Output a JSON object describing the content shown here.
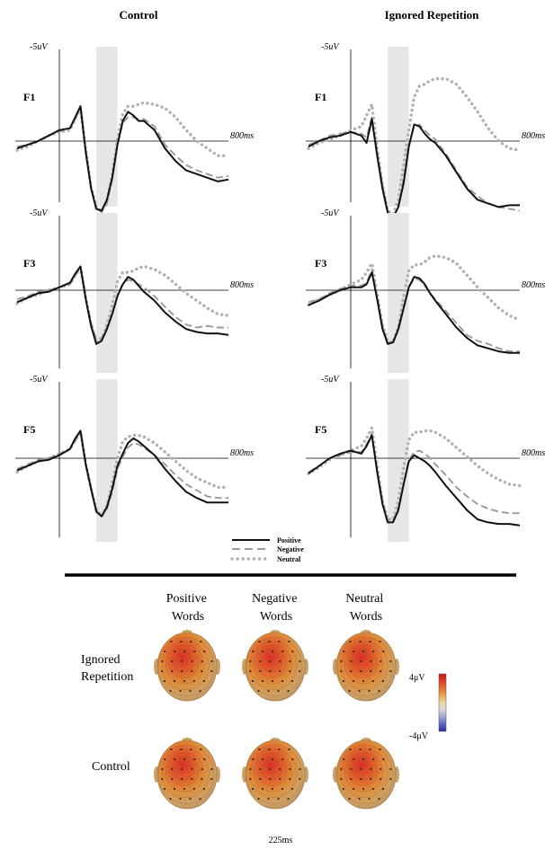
{
  "panels_header": {
    "control": "Control",
    "ignored": "Ignored Repetition"
  },
  "axis_text": {
    "amplitude": "-5uV",
    "time_end": "800ms"
  },
  "legend": [
    {
      "label": "Positive",
      "style": "solid",
      "color": "#111111"
    },
    {
      "label": "Negative",
      "style": "dashed",
      "color": "#9a9a9a"
    },
    {
      "label": "Neutral",
      "style": "dotted",
      "color": "#b0b0b0"
    }
  ],
  "highlight": {
    "color": "#e6e6e6"
  },
  "chart_data": [
    {
      "type": "line",
      "condition": "Control",
      "electrode": "F1",
      "x": [
        -200,
        -150,
        -100,
        -50,
        0,
        50,
        75,
        100,
        125,
        150,
        175,
        200,
        225,
        250,
        275,
        300,
        325,
        350,
        375,
        400,
        450,
        500,
        550,
        600,
        650,
        700,
        750,
        800
      ],
      "xlim": [
        -200,
        800
      ],
      "ylim": [
        -5,
        5
      ],
      "series": [
        {
          "name": "Positive",
          "values": [
            0.4,
            0.2,
            0.0,
            -0.3,
            -0.6,
            -0.7,
            -1.3,
            -1.9,
            0.6,
            2.6,
            3.7,
            3.8,
            3.2,
            2.0,
            0.2,
            -1.1,
            -1.6,
            -1.4,
            -1.1,
            -1.1,
            -0.6,
            0.4,
            1.1,
            1.6,
            1.8,
            2.0,
            2.2,
            2.1
          ]
        },
        {
          "name": "Negative",
          "values": [
            0.3,
            0.2,
            0.0,
            -0.3,
            -0.5,
            -0.7,
            -1.2,
            -1.8,
            0.7,
            2.5,
            3.6,
            3.9,
            3.4,
            2.1,
            0.2,
            -1.0,
            -1.3,
            -1.3,
            -1.2,
            -1.2,
            -0.8,
            0.2,
            0.8,
            1.3,
            1.6,
            1.8,
            2.0,
            1.9
          ]
        },
        {
          "name": "Neutral",
          "values": [
            0.5,
            0.3,
            0.0,
            -0.3,
            -0.5,
            -0.6,
            -1.2,
            -1.8,
            0.5,
            2.5,
            3.6,
            3.8,
            3.3,
            1.8,
            -0.1,
            -1.5,
            -1.9,
            -1.9,
            -2.0,
            -2.1,
            -2.0,
            -1.8,
            -1.3,
            -0.6,
            0.0,
            0.4,
            0.8,
            0.8
          ]
        }
      ]
    },
    {
      "type": "line",
      "condition": "Control",
      "electrode": "F3",
      "x": [
        -200,
        -150,
        -100,
        -50,
        0,
        50,
        75,
        100,
        125,
        150,
        175,
        200,
        225,
        250,
        275,
        300,
        325,
        350,
        375,
        400,
        450,
        500,
        550,
        600,
        650,
        700,
        750,
        800
      ],
      "xlim": [
        -200,
        800
      ],
      "ylim": [
        -5,
        5
      ],
      "series": [
        {
          "name": "Positive",
          "values": [
            0.8,
            0.5,
            0.2,
            0.1,
            -0.2,
            -0.5,
            -1.1,
            -1.6,
            0.6,
            2.4,
            3.6,
            3.4,
            2.6,
            1.6,
            0.4,
            -0.4,
            -0.9,
            -0.7,
            -0.3,
            0.1,
            0.7,
            1.5,
            2.1,
            2.6,
            2.8,
            2.9,
            2.9,
            3.0
          ]
        },
        {
          "name": "Negative",
          "values": [
            0.6,
            0.4,
            0.1,
            0.0,
            -0.2,
            -0.4,
            -1.0,
            -1.5,
            0.6,
            2.2,
            3.3,
            3.2,
            2.5,
            1.5,
            0.3,
            -0.4,
            -0.7,
            -0.6,
            -0.4,
            -0.2,
            0.4,
            1.1,
            1.8,
            2.3,
            2.5,
            2.4,
            2.5,
            2.5
          ]
        },
        {
          "name": "Neutral",
          "values": [
            0.9,
            0.5,
            0.3,
            0.0,
            -0.2,
            -0.4,
            -1.0,
            -1.5,
            0.5,
            2.3,
            3.4,
            3.3,
            2.3,
            1.0,
            -0.6,
            -1.2,
            -1.2,
            -1.3,
            -1.5,
            -1.6,
            -1.4,
            -1.0,
            -0.4,
            0.2,
            0.7,
            1.2,
            1.6,
            1.7
          ]
        }
      ]
    },
    {
      "type": "line",
      "condition": "Control",
      "electrode": "F5",
      "x": [
        -200,
        -150,
        -100,
        -50,
        0,
        50,
        75,
        100,
        125,
        150,
        175,
        200,
        225,
        250,
        275,
        300,
        325,
        350,
        375,
        400,
        450,
        500,
        550,
        600,
        650,
        700,
        750,
        800
      ],
      "xlim": [
        -200,
        800
      ],
      "ylim": [
        -5,
        5
      ],
      "series": [
        {
          "name": "Positive",
          "values": [
            0.8,
            0.5,
            0.2,
            0.1,
            -0.2,
            -0.6,
            -1.3,
            -1.8,
            0.4,
            2.0,
            3.5,
            3.8,
            3.2,
            2.0,
            0.5,
            -0.3,
            -1.0,
            -1.3,
            -1.1,
            -0.8,
            -0.2,
            0.7,
            1.5,
            2.2,
            2.6,
            2.9,
            2.9,
            2.9
          ]
        },
        {
          "name": "Negative",
          "values": [
            0.7,
            0.4,
            0.1,
            0.0,
            -0.3,
            -0.6,
            -1.1,
            -1.7,
            0.5,
            2.1,
            3.4,
            3.8,
            3.3,
            2.2,
            0.7,
            -0.1,
            -0.7,
            -1.0,
            -0.9,
            -0.7,
            -0.2,
            0.4,
            1.1,
            1.7,
            2.1,
            2.5,
            2.6,
            2.6
          ]
        },
        {
          "name": "Neutral",
          "values": [
            0.9,
            0.5,
            0.2,
            0.0,
            -0.3,
            -0.6,
            -1.2,
            -1.7,
            0.4,
            2.0,
            3.3,
            3.8,
            3.1,
            1.6,
            0.0,
            -1.1,
            -1.4,
            -1.5,
            -1.5,
            -1.4,
            -1.0,
            -0.4,
            0.2,
            0.8,
            1.3,
            1.6,
            1.9,
            1.9
          ]
        }
      ]
    },
    {
      "type": "line",
      "condition": "Ignored Repetition",
      "electrode": "F1",
      "x": [
        -200,
        -150,
        -100,
        -50,
        0,
        50,
        75,
        100,
        125,
        150,
        175,
        200,
        225,
        250,
        275,
        300,
        325,
        350,
        375,
        400,
        450,
        500,
        550,
        600,
        650,
        700,
        750,
        800
      ],
      "xlim": [
        -200,
        800
      ],
      "ylim": [
        -5,
        5
      ],
      "series": [
        {
          "name": "Positive",
          "values": [
            0.3,
            0.0,
            -0.2,
            -0.3,
            -0.5,
            -0.3,
            0.1,
            -1.2,
            0.8,
            2.6,
            3.9,
            4.2,
            3.6,
            2.3,
            0.3,
            -0.9,
            -0.8,
            -0.4,
            -0.1,
            0.1,
            0.8,
            1.7,
            2.6,
            3.2,
            3.4,
            3.6,
            3.5,
            3.5
          ]
        },
        {
          "name": "Negative",
          "values": [
            0.2,
            0.0,
            -0.3,
            -0.4,
            -0.5,
            -0.4,
            -0.2,
            -1.3,
            0.6,
            2.4,
            3.8,
            4.1,
            3.6,
            2.1,
            0.2,
            -0.8,
            -0.9,
            -0.6,
            -0.3,
            -0.1,
            0.7,
            1.6,
            2.5,
            3.0,
            3.4,
            3.6,
            3.7,
            3.8
          ]
        },
        {
          "name": "Neutral",
          "values": [
            0.4,
            0.1,
            -0.1,
            -0.3,
            -0.6,
            -0.8,
            -1.4,
            -2.0,
            0.4,
            2.4,
            3.8,
            4.0,
            3.2,
            1.3,
            -0.6,
            -2.4,
            -3.0,
            -3.1,
            -3.3,
            -3.4,
            -3.4,
            -3.1,
            -2.4,
            -1.6,
            -0.7,
            0.0,
            0.4,
            0.5
          ]
        }
      ]
    },
    {
      "type": "line",
      "condition": "Ignored Repetition",
      "electrode": "F3",
      "x": [
        -200,
        -150,
        -100,
        -50,
        0,
        50,
        75,
        100,
        125,
        150,
        175,
        200,
        225,
        250,
        275,
        300,
        325,
        350,
        375,
        400,
        450,
        500,
        550,
        600,
        650,
        700,
        750,
        800
      ],
      "xlim": [
        -200,
        800
      ],
      "ylim": [
        -5,
        5
      ],
      "series": [
        {
          "name": "Positive",
          "values": [
            1.0,
            0.7,
            0.3,
            0.0,
            -0.2,
            -0.2,
            -0.4,
            -1.2,
            0.6,
            2.6,
            3.6,
            3.5,
            2.6,
            1.2,
            -0.2,
            -0.9,
            -0.8,
            -0.4,
            0.2,
            0.7,
            1.6,
            2.5,
            3.2,
            3.7,
            3.9,
            4.1,
            4.2,
            4.2
          ]
        },
        {
          "name": "Negative",
          "values": [
            0.8,
            0.6,
            0.2,
            -0.1,
            -0.3,
            -0.3,
            -0.5,
            -1.4,
            0.4,
            2.4,
            3.5,
            3.5,
            2.7,
            1.2,
            -0.2,
            -0.8,
            -0.7,
            -0.3,
            0.2,
            0.6,
            1.4,
            2.2,
            3.0,
            3.4,
            3.6,
            3.9,
            4.1,
            4.1
          ]
        },
        {
          "name": "Neutral",
          "values": [
            1.0,
            0.6,
            0.3,
            0.0,
            -0.4,
            -0.7,
            -1.2,
            -1.8,
            0.3,
            2.3,
            3.4,
            3.5,
            2.5,
            0.4,
            -1.3,
            -1.7,
            -1.7,
            -1.9,
            -2.2,
            -2.3,
            -2.2,
            -1.8,
            -1.0,
            -0.2,
            0.5,
            1.2,
            1.7,
            2.0
          ]
        }
      ]
    },
    {
      "type": "line",
      "condition": "Ignored Repetition",
      "electrode": "F5",
      "x": [
        -200,
        -150,
        -100,
        -50,
        0,
        50,
        75,
        100,
        125,
        150,
        175,
        200,
        225,
        250,
        275,
        300,
        325,
        350,
        375,
        400,
        450,
        500,
        550,
        600,
        650,
        700,
        750,
        800
      ],
      "xlim": [
        -200,
        800
      ],
      "ylim": [
        -5,
        5
      ],
      "series": [
        {
          "name": "Positive",
          "values": [
            1.0,
            0.5,
            0.0,
            -0.3,
            -0.5,
            -0.3,
            -0.8,
            -1.5,
            0.9,
            3.0,
            4.2,
            4.2,
            3.4,
            1.7,
            0.2,
            -0.2,
            0.0,
            0.2,
            0.5,
            0.9,
            1.8,
            2.6,
            3.4,
            4.0,
            4.2,
            4.3,
            4.3,
            4.4
          ]
        },
        {
          "name": "Negative",
          "values": [
            0.9,
            0.5,
            0.0,
            -0.2,
            -0.4,
            -0.4,
            -0.9,
            -1.6,
            0.8,
            2.8,
            4.1,
            4.1,
            3.3,
            1.7,
            0.1,
            -0.4,
            -0.5,
            -0.3,
            0.0,
            0.4,
            1.1,
            1.9,
            2.5,
            3.0,
            3.3,
            3.5,
            3.6,
            3.6
          ]
        },
        {
          "name": "Neutral",
          "values": [
            1.0,
            0.6,
            0.1,
            -0.2,
            -0.5,
            -0.8,
            -1.3,
            -2.0,
            0.5,
            2.8,
            4.0,
            4.0,
            2.8,
            0.6,
            -1.2,
            -1.7,
            -1.7,
            -1.8,
            -1.8,
            -1.7,
            -1.3,
            -0.7,
            -0.1,
            0.5,
            1.0,
            1.4,
            1.7,
            1.8
          ]
        }
      ]
    }
  ],
  "topo": {
    "columns": [
      "Positive\nWords",
      "Negative\nWords",
      "Neutral\nWords"
    ],
    "rows": [
      "Ignored\nRepetition",
      "Control"
    ],
    "time_label": "225ms",
    "scale_max": "4μV",
    "scale_min": "-4μV"
  }
}
